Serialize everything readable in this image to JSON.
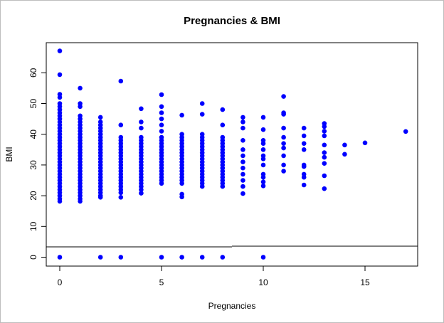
{
  "chart_data": {
    "type": "scatter",
    "title": "Pregnancies & BMI",
    "xlabel": "Pregnancies",
    "ylabel": "BMI",
    "xlim": [
      0,
      17
    ],
    "ylim": [
      0,
      67.1
    ],
    "xticks": [
      "0",
      "5",
      "10",
      "15"
    ],
    "yticks": [
      "0",
      "10",
      "20",
      "30",
      "40",
      "50",
      "60"
    ],
    "point_color": "#0000ff",
    "series": [
      {
        "points": [
          [
            0,
            0
          ],
          [
            0,
            18.2
          ],
          [
            0,
            19
          ],
          [
            0,
            20
          ],
          [
            0,
            21
          ],
          [
            0,
            22
          ],
          [
            0,
            23
          ],
          [
            0,
            24
          ],
          [
            0,
            25
          ],
          [
            0,
            26
          ],
          [
            0,
            27
          ],
          [
            0,
            28
          ],
          [
            0,
            29
          ],
          [
            0,
            30
          ],
          [
            0,
            31
          ],
          [
            0,
            32
          ],
          [
            0,
            33
          ],
          [
            0,
            34
          ],
          [
            0,
            35
          ],
          [
            0,
            36
          ],
          [
            0,
            37
          ],
          [
            0,
            38
          ],
          [
            0,
            39
          ],
          [
            0,
            40
          ],
          [
            0,
            41
          ],
          [
            0,
            42
          ],
          [
            0,
            43
          ],
          [
            0,
            44
          ],
          [
            0,
            45
          ],
          [
            0,
            46
          ],
          [
            0,
            47
          ],
          [
            0,
            48
          ],
          [
            0,
            49
          ],
          [
            0,
            50
          ],
          [
            0,
            52
          ],
          [
            0,
            53
          ],
          [
            0,
            59.4
          ],
          [
            0,
            67.1
          ],
          [
            1,
            18.2
          ],
          [
            1,
            19
          ],
          [
            1,
            20
          ],
          [
            1,
            21
          ],
          [
            1,
            22
          ],
          [
            1,
            23
          ],
          [
            1,
            24
          ],
          [
            1,
            25
          ],
          [
            1,
            26
          ],
          [
            1,
            27
          ],
          [
            1,
            28
          ],
          [
            1,
            29
          ],
          [
            1,
            30
          ],
          [
            1,
            31
          ],
          [
            1,
            32
          ],
          [
            1,
            33
          ],
          [
            1,
            34
          ],
          [
            1,
            35
          ],
          [
            1,
            36
          ],
          [
            1,
            37
          ],
          [
            1,
            38
          ],
          [
            1,
            39
          ],
          [
            1,
            40
          ],
          [
            1,
            41
          ],
          [
            1,
            42
          ],
          [
            1,
            43
          ],
          [
            1,
            44
          ],
          [
            1,
            45
          ],
          [
            1,
            46
          ],
          [
            1,
            49
          ],
          [
            1,
            50
          ],
          [
            1,
            55
          ],
          [
            2,
            0
          ],
          [
            2,
            19.5
          ],
          [
            2,
            20
          ],
          [
            2,
            21
          ],
          [
            2,
            22
          ],
          [
            2,
            23
          ],
          [
            2,
            24
          ],
          [
            2,
            25
          ],
          [
            2,
            26
          ],
          [
            2,
            27
          ],
          [
            2,
            28
          ],
          [
            2,
            29
          ],
          [
            2,
            30
          ],
          [
            2,
            31
          ],
          [
            2,
            32
          ],
          [
            2,
            33
          ],
          [
            2,
            34
          ],
          [
            2,
            35
          ],
          [
            2,
            36
          ],
          [
            2,
            37
          ],
          [
            2,
            38
          ],
          [
            2,
            39
          ],
          [
            2,
            40
          ],
          [
            2,
            41
          ],
          [
            2,
            42
          ],
          [
            2,
            43
          ],
          [
            2,
            44
          ],
          [
            2,
            45.5
          ],
          [
            3,
            0
          ],
          [
            3,
            19.5
          ],
          [
            3,
            21
          ],
          [
            3,
            22
          ],
          [
            3,
            23
          ],
          [
            3,
            24
          ],
          [
            3,
            25
          ],
          [
            3,
            26
          ],
          [
            3,
            27
          ],
          [
            3,
            28
          ],
          [
            3,
            29
          ],
          [
            3,
            30
          ],
          [
            3,
            31
          ],
          [
            3,
            32
          ],
          [
            3,
            33
          ],
          [
            3,
            34
          ],
          [
            3,
            35
          ],
          [
            3,
            36
          ],
          [
            3,
            37
          ],
          [
            3,
            38
          ],
          [
            3,
            39
          ],
          [
            3,
            43
          ],
          [
            3,
            57.3
          ],
          [
            4,
            20.8
          ],
          [
            4,
            22
          ],
          [
            4,
            23
          ],
          [
            4,
            24
          ],
          [
            4,
            25
          ],
          [
            4,
            26
          ],
          [
            4,
            27
          ],
          [
            4,
            28
          ],
          [
            4,
            29
          ],
          [
            4,
            30
          ],
          [
            4,
            31
          ],
          [
            4,
            32
          ],
          [
            4,
            33
          ],
          [
            4,
            34
          ],
          [
            4,
            35
          ],
          [
            4,
            36
          ],
          [
            4,
            37
          ],
          [
            4,
            38
          ],
          [
            4,
            39
          ],
          [
            4,
            42
          ],
          [
            4,
            44
          ],
          [
            4,
            48.3
          ],
          [
            5,
            0
          ],
          [
            5,
            24
          ],
          [
            5,
            25
          ],
          [
            5,
            26
          ],
          [
            5,
            27
          ],
          [
            5,
            28
          ],
          [
            5,
            29
          ],
          [
            5,
            30
          ],
          [
            5,
            31
          ],
          [
            5,
            32
          ],
          [
            5,
            33
          ],
          [
            5,
            34
          ],
          [
            5,
            35
          ],
          [
            5,
            36
          ],
          [
            5,
            37
          ],
          [
            5,
            38
          ],
          [
            5,
            39
          ],
          [
            5,
            41
          ],
          [
            5,
            43
          ],
          [
            5,
            45
          ],
          [
            5,
            47
          ],
          [
            5,
            49
          ],
          [
            5,
            52.9
          ],
          [
            6,
            0
          ],
          [
            6,
            19.6
          ],
          [
            6,
            20.5
          ],
          [
            6,
            24
          ],
          [
            6,
            25
          ],
          [
            6,
            26
          ],
          [
            6,
            27
          ],
          [
            6,
            28
          ],
          [
            6,
            29
          ],
          [
            6,
            30
          ],
          [
            6,
            31
          ],
          [
            6,
            32
          ],
          [
            6,
            33
          ],
          [
            6,
            34
          ],
          [
            6,
            35
          ],
          [
            6,
            36
          ],
          [
            6,
            37
          ],
          [
            6,
            38
          ],
          [
            6,
            39
          ],
          [
            6,
            40
          ],
          [
            6,
            46.2
          ],
          [
            7,
            0
          ],
          [
            7,
            23
          ],
          [
            7,
            24
          ],
          [
            7,
            25
          ],
          [
            7,
            26
          ],
          [
            7,
            27
          ],
          [
            7,
            28
          ],
          [
            7,
            29
          ],
          [
            7,
            30
          ],
          [
            7,
            31
          ],
          [
            7,
            32
          ],
          [
            7,
            33
          ],
          [
            7,
            34
          ],
          [
            7,
            35
          ],
          [
            7,
            36
          ],
          [
            7,
            37
          ],
          [
            7,
            38
          ],
          [
            7,
            39
          ],
          [
            7,
            40
          ],
          [
            7,
            46.5
          ],
          [
            7,
            50
          ],
          [
            8,
            0
          ],
          [
            8,
            23
          ],
          [
            8,
            24
          ],
          [
            8,
            25
          ],
          [
            8,
            26
          ],
          [
            8,
            27
          ],
          [
            8,
            28
          ],
          [
            8,
            29
          ],
          [
            8,
            30
          ],
          [
            8,
            31
          ],
          [
            8,
            32
          ],
          [
            8,
            33
          ],
          [
            8,
            34
          ],
          [
            8,
            35
          ],
          [
            8,
            36
          ],
          [
            8,
            37
          ],
          [
            8,
            38
          ],
          [
            8,
            39
          ],
          [
            8,
            43
          ],
          [
            8,
            48
          ],
          [
            9,
            20.7
          ],
          [
            9,
            23
          ],
          [
            9,
            25
          ],
          [
            9,
            27
          ],
          [
            9,
            29
          ],
          [
            9,
            31
          ],
          [
            9,
            33
          ],
          [
            9,
            35
          ],
          [
            9,
            38
          ],
          [
            9,
            42
          ],
          [
            9,
            44
          ],
          [
            9,
            45.5
          ],
          [
            10,
            0
          ],
          [
            10,
            23.2
          ],
          [
            10,
            24.5
          ],
          [
            10,
            26
          ],
          [
            10,
            27
          ],
          [
            10,
            30
          ],
          [
            10,
            32
          ],
          [
            10,
            33
          ],
          [
            10,
            35
          ],
          [
            10,
            37
          ],
          [
            10,
            38
          ],
          [
            10,
            41.5
          ],
          [
            10,
            45.5
          ],
          [
            11,
            28
          ],
          [
            11,
            30
          ],
          [
            11,
            33
          ],
          [
            11,
            35.5
          ],
          [
            11,
            37
          ],
          [
            11,
            39
          ],
          [
            11,
            42
          ],
          [
            11,
            46.5
          ],
          [
            11,
            47
          ],
          [
            11,
            52.3
          ],
          [
            12,
            23.5
          ],
          [
            12,
            26
          ],
          [
            12,
            27
          ],
          [
            12,
            29.5
          ],
          [
            12,
            30
          ],
          [
            12,
            35
          ],
          [
            12,
            37
          ],
          [
            12,
            39.5
          ],
          [
            12,
            42
          ],
          [
            13,
            22.3
          ],
          [
            13,
            26.5
          ],
          [
            13,
            30.5
          ],
          [
            13,
            32.5
          ],
          [
            13,
            34
          ],
          [
            13,
            36.5
          ],
          [
            13,
            39.5
          ],
          [
            13,
            41
          ],
          [
            13,
            42.5
          ],
          [
            13,
            43.5
          ],
          [
            14,
            33.5
          ],
          [
            14,
            36.5
          ],
          [
            15,
            37.2
          ],
          [
            17,
            40.9
          ]
        ]
      }
    ]
  }
}
